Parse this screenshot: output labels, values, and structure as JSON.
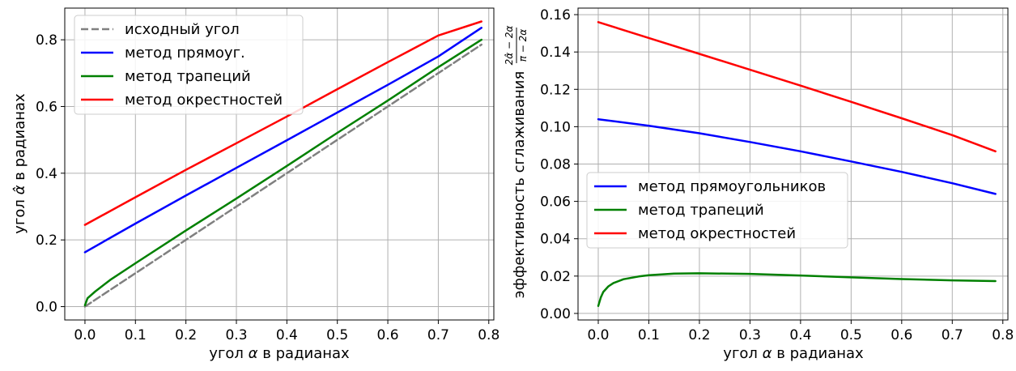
{
  "chart_data": [
    {
      "type": "line",
      "xlabel_prefix": "угол",
      "xlabel_symbol": "α",
      "xlabel_suffix": "в радианах",
      "ylabel_prefix": "угол",
      "ylabel_symbol": "α̂",
      "ylabel_suffix": "в радианах",
      "xlim": [
        -0.04,
        0.81
      ],
      "ylim": [
        -0.04,
        0.895
      ],
      "xticks": [
        0.0,
        0.1,
        0.2,
        0.3,
        0.4,
        0.5,
        0.6,
        0.7,
        0.8
      ],
      "yticks": [
        0.0,
        0.2,
        0.4,
        0.6,
        0.8
      ],
      "xtick_labels": [
        "0.0",
        "0.1",
        "0.2",
        "0.3",
        "0.4",
        "0.5",
        "0.6",
        "0.7",
        "0.8"
      ],
      "ytick_labels": [
        "0.0",
        "0.2",
        "0.4",
        "0.6",
        "0.8"
      ],
      "grid": true,
      "legend_position": "top-left",
      "series": [
        {
          "name": "исходный угол",
          "color": "#808080",
          "dash": true,
          "x": [
            0.0,
            0.7854
          ],
          "y": [
            0.0,
            0.7854
          ]
        },
        {
          "name": "метод прямоуг.",
          "color": "#0000ff",
          "x": [
            0.0,
            0.1,
            0.2,
            0.3,
            0.4,
            0.5,
            0.6,
            0.7,
            0.7854
          ],
          "y": [
            0.163,
            0.249,
            0.333,
            0.416,
            0.499,
            0.582,
            0.665,
            0.75,
            0.836
          ]
        },
        {
          "name": "метод трапеций",
          "color": "#008000",
          "x": [
            0.0,
            0.005,
            0.02,
            0.05,
            0.1,
            0.2,
            0.3,
            0.4,
            0.5,
            0.6,
            0.7,
            0.7854
          ],
          "y": [
            0.004,
            0.025,
            0.045,
            0.08,
            0.13,
            0.228,
            0.324,
            0.422,
            0.521,
            0.618,
            0.718,
            0.8
          ]
        },
        {
          "name": "метод окрестностей",
          "color": "#ff0000",
          "x": [
            0.0,
            0.1,
            0.2,
            0.3,
            0.4,
            0.5,
            0.6,
            0.7,
            0.7854
          ],
          "y": [
            0.245,
            0.328,
            0.41,
            0.49,
            0.57,
            0.652,
            0.733,
            0.813,
            0.855
          ]
        }
      ]
    },
    {
      "type": "line",
      "xlabel_prefix": "угол",
      "xlabel_symbol": "α",
      "xlabel_suffix": "в радианах",
      "ylabel_text": "эффективность сглаживания",
      "ylabel_frac_num": "2α̂ − 2α",
      "ylabel_frac_den": "π − 2α",
      "xlim": [
        -0.04,
        0.81
      ],
      "ylim": [
        -0.0035,
        0.1635
      ],
      "xticks": [
        0.0,
        0.1,
        0.2,
        0.3,
        0.4,
        0.5,
        0.6,
        0.7,
        0.8
      ],
      "yticks": [
        0.0,
        0.02,
        0.04,
        0.06,
        0.08,
        0.1,
        0.12,
        0.14,
        0.16
      ],
      "xtick_labels": [
        "0.0",
        "0.1",
        "0.2",
        "0.3",
        "0.4",
        "0.5",
        "0.6",
        "0.7",
        "0.8"
      ],
      "ytick_labels": [
        "0.00",
        "0.02",
        "0.04",
        "0.06",
        "0.08",
        "0.10",
        "0.12",
        "0.14",
        "0.16"
      ],
      "grid": true,
      "legend_position": "center-left",
      "series": [
        {
          "name": "метод прямоугольников",
          "color": "#0000ff",
          "x": [
            0.0,
            0.1,
            0.2,
            0.3,
            0.4,
            0.5,
            0.6,
            0.7,
            0.7854
          ],
          "y": [
            0.104,
            0.1005,
            0.0965,
            0.0918,
            0.0868,
            0.0814,
            0.0758,
            0.0697,
            0.064
          ]
        },
        {
          "name": "метод трапеций",
          "color": "#008000",
          "x": [
            0.0,
            0.005,
            0.01,
            0.02,
            0.03,
            0.05,
            0.08,
            0.1,
            0.15,
            0.2,
            0.3,
            0.4,
            0.5,
            0.6,
            0.7,
            0.7854
          ],
          "y": [
            0.004,
            0.0085,
            0.0115,
            0.0145,
            0.0163,
            0.0183,
            0.0198,
            0.0205,
            0.0213,
            0.0215,
            0.0212,
            0.0203,
            0.0193,
            0.0184,
            0.0177,
            0.0173
          ]
        },
        {
          "name": "метод окрестностей",
          "color": "#ff0000",
          "x": [
            0.0,
            0.1,
            0.2,
            0.3,
            0.4,
            0.5,
            0.6,
            0.7,
            0.7854
          ],
          "y": [
            0.156,
            0.1475,
            0.139,
            0.1305,
            0.122,
            0.1133,
            0.1045,
            0.0955,
            0.0868
          ]
        }
      ]
    }
  ]
}
